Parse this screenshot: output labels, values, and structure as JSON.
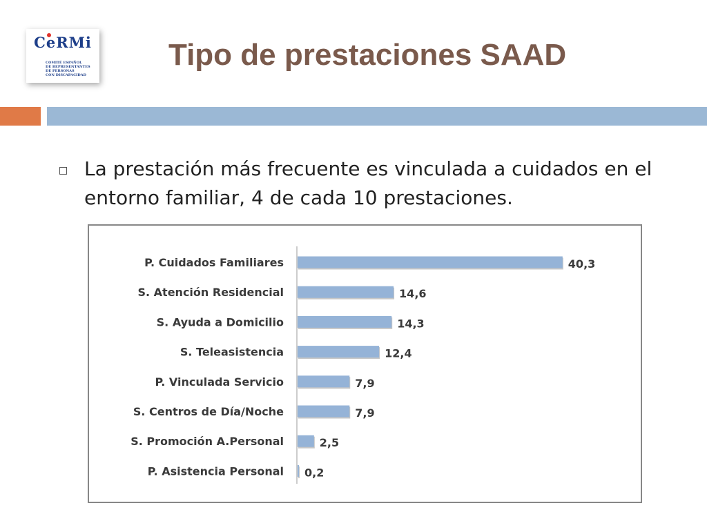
{
  "logo": {
    "word": "CeRMi",
    "lines": [
      "COMITÉ ESPAÑOL",
      "DE REPRESENTANTES",
      "DE PERSONAS",
      "CON DISCAPACIDAD"
    ]
  },
  "title": "Tipo de prestaciones SAAD",
  "bullet": {
    "text": "La prestación más frecuente es vinculada a cuidados en el entorno familiar,  4 de cada 10 prestaciones."
  },
  "colors": {
    "title": "#7a5a4c",
    "accent_orange": "#e07a47",
    "accent_blue": "#9bb8d5",
    "bar": "#95b3d7",
    "logo_blue": "#1e3f8a",
    "logo_red": "#e0322b"
  },
  "chart_data": {
    "type": "bar",
    "orientation": "horizontal",
    "categories": [
      "P. Cuidados Familiares",
      "S. Atención Residencial",
      "S. Ayuda a Domicilio",
      "S. Teleasistencia",
      "P. Vinculada Servicio",
      "S. Centros de Día/Noche",
      "S. Promoción A.Personal",
      "P. Asistencia Personal"
    ],
    "values": [
      40.3,
      14.6,
      14.3,
      12.4,
      7.9,
      7.9,
      2.5,
      0.2
    ],
    "value_labels": [
      "40,3",
      "14,6",
      "14,3",
      "12,4",
      "7,9",
      "7,9",
      "2,5",
      "0,2"
    ],
    "xlim": [
      0,
      42
    ],
    "grid": false,
    "legend": "none"
  }
}
